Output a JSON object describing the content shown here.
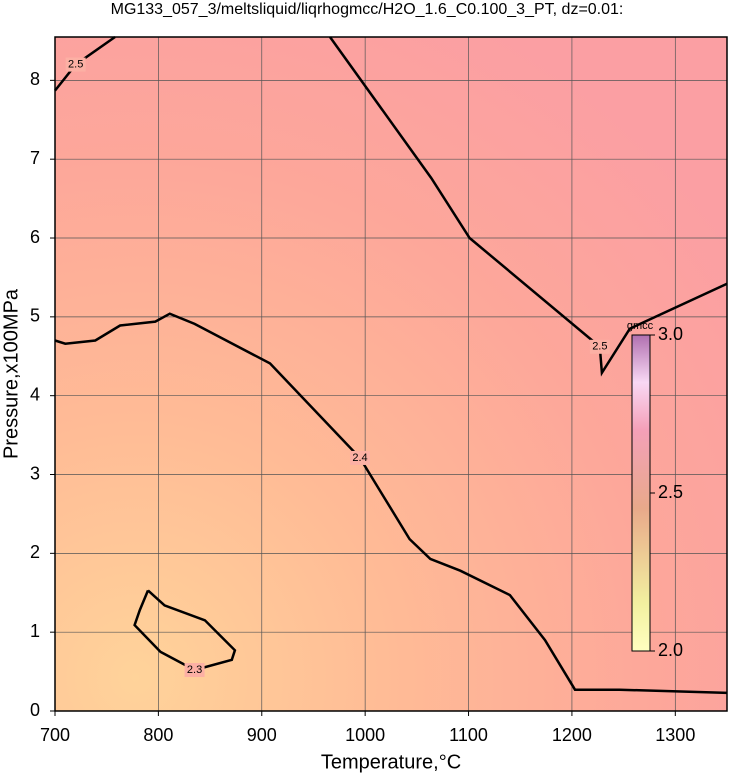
{
  "chart_data": {
    "type": "contour",
    "title": "MG133_057_3/meltsliquid/liqrhogmcc/H2O_1.6_C0.100_3_PT, dz=0.01:",
    "x_label": "Temperature,°C",
    "y_label": "Pressure,x100MPa",
    "xlim": [
      700,
      1350
    ],
    "ylim": [
      0,
      8.55
    ],
    "xticks": [
      700,
      800,
      900,
      1000,
      1100,
      1200,
      1300
    ],
    "yticks": [
      0,
      1,
      2,
      3,
      4,
      5,
      6,
      7,
      8
    ],
    "grid": true,
    "contours": [
      {
        "level": 2.5,
        "x": [
          700,
          720,
          758
        ],
        "y": [
          7.87,
          8.2,
          8.55
        ]
      },
      {
        "level": 2.5,
        "x": [
          966,
          1064,
          1101,
          1227,
          1229,
          1256,
          1350
        ],
        "y": [
          8.55,
          6.76,
          6.0,
          4.62,
          4.29,
          4.85,
          5.42
        ]
      },
      {
        "level": 2.4,
        "x": [
          700,
          710,
          739,
          763,
          797,
          811,
          835,
          908,
          995,
          1043,
          1063,
          1092,
          1140,
          1174,
          1203,
          1246,
          1350
        ],
        "y": [
          4.7,
          4.66,
          4.7,
          4.89,
          4.94,
          5.04,
          4.91,
          4.41,
          3.21,
          2.18,
          1.93,
          1.78,
          1.47,
          0.9,
          0.27,
          0.27,
          0.23
        ]
      },
      {
        "level": 2.3,
        "x": [
          790,
          806,
          845,
          874,
          871,
          835,
          802,
          777,
          782,
          790
        ],
        "y": [
          1.53,
          1.34,
          1.15,
          0.77,
          0.65,
          0.52,
          0.75,
          1.09,
          1.28,
          1.53
        ]
      }
    ],
    "colorbar": {
      "label": "gmcc",
      "lim": [
        2.0,
        3.0
      ],
      "ticks": [
        {
          "value": 2.0,
          "label": "2.0"
        },
        2.5,
        {
          "value": 3.0,
          "label": "3.0"
        }
      ]
    }
  }
}
